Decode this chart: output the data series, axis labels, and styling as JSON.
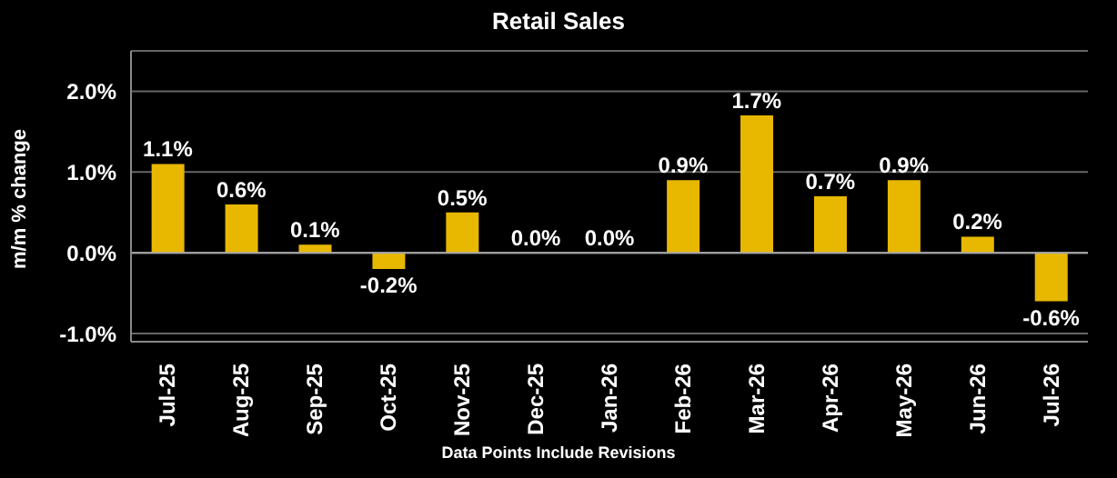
{
  "chart_data": {
    "type": "bar",
    "title": "Retail Sales",
    "ylabel": "m/m % change",
    "categories": [
      "Jul-25",
      "Aug-25",
      "Sep-25",
      "Oct-25",
      "Nov-25",
      "Dec-25",
      "Jan-26",
      "Feb-26",
      "Mar-26",
      "Apr-26",
      "May-26",
      "Jun-26",
      "Jul-26"
    ],
    "values": [
      1.1,
      0.6,
      0.1,
      -0.2,
      0.5,
      0.0,
      0.0,
      0.9,
      1.7,
      0.7,
      0.9,
      0.2,
      -0.6
    ],
    "value_labels": [
      "1.1%",
      "0.6%",
      "0.1%",
      "-0.2%",
      "0.5%",
      "0.0%",
      "0.0%",
      "0.9%",
      "1.7%",
      "0.7%",
      "0.9%",
      "0.2%",
      "-0.6%"
    ],
    "color": "#e8b800",
    "ylim": [
      -1.1,
      2.5
    ],
    "yticks": [
      {
        "value": -1,
        "label": "-1.0%"
      },
      {
        "value": 0,
        "label": "0.0%"
      },
      {
        "value": 1,
        "label": "1.0%"
      },
      {
        "value": 2,
        "label": "2.0%"
      }
    ],
    "grid": "y",
    "annotations": [
      "Data Points Include Revisions"
    ]
  }
}
